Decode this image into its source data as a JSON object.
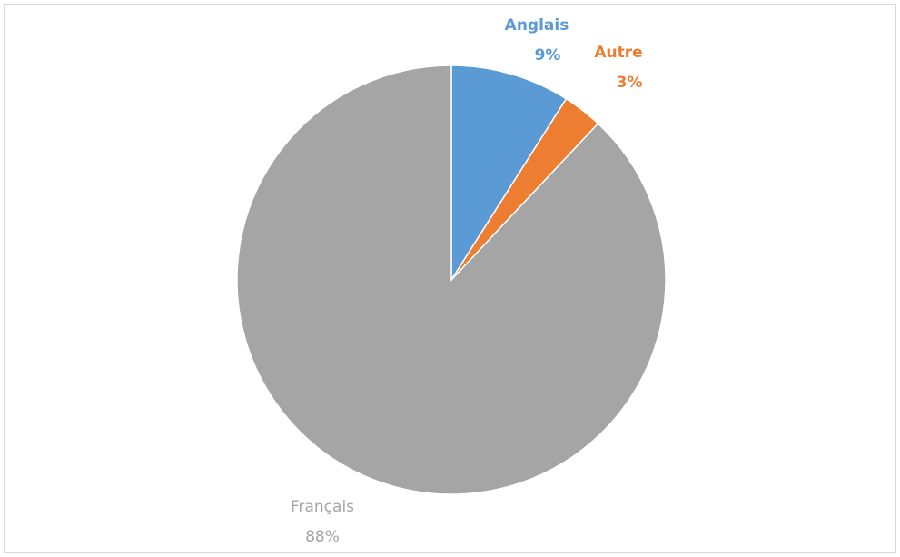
{
  "chart_data": {
    "type": "pie",
    "categories": [
      "Anglais",
      "Autre",
      "Français"
    ],
    "values": [
      9,
      3,
      88
    ],
    "value_labels": [
      "9%",
      "3%",
      "88%"
    ],
    "colors": [
      "#5b9bd5",
      "#ed7d31",
      "#a5a5a5"
    ]
  }
}
